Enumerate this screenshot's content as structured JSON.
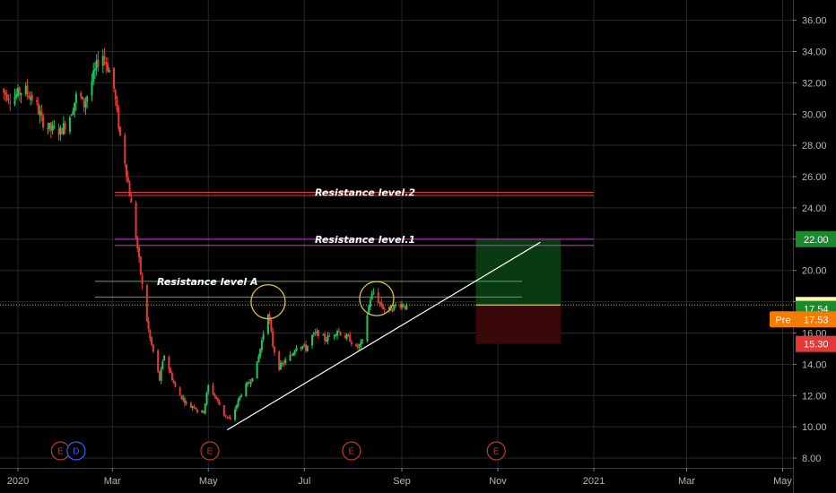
{
  "colors": {
    "background": "#000000",
    "grid": "#26282d",
    "up": "#26a69a",
    "up_bright": "#22c55e",
    "down": "#e53935",
    "resistance_2": "#e53935",
    "resistance_1": "#c040c0",
    "resistance_a": "#4caf50",
    "trendline": "#ffffff",
    "circle": "#e0c040",
    "last_price_line": "#d4b000",
    "profit_zone": "#0a3a12",
    "loss_zone": "#3a0808",
    "earnings": "#c0392b",
    "dividend": "#2962ff"
  },
  "chart_data": {
    "type": "candlestick",
    "x_axis": {
      "ticks": [
        {
          "label": "2020",
          "date": "2020-01-01"
        },
        {
          "label": "Mar",
          "date": "2020-03-01"
        },
        {
          "label": "May",
          "date": "2020-05-01"
        },
        {
          "label": "Jul",
          "date": "2020-07-01"
        },
        {
          "label": "Sep",
          "date": "2020-09-01"
        },
        {
          "label": "Nov",
          "date": "2020-11-01"
        },
        {
          "label": "2021",
          "date": "2021-01-01"
        },
        {
          "label": "Mar",
          "date": "2021-03-01"
        },
        {
          "label": "May",
          "date": "2021-05-01"
        }
      ]
    },
    "y_axis": {
      "ylim": [
        7.5,
        37.0
      ],
      "ticks": [
        "36.00",
        "34.00",
        "32.00",
        "30.00",
        "28.00",
        "26.00",
        "24.00",
        "22.00",
        "20.00",
        "18.00",
        "16.00",
        "14.00",
        "12.00",
        "10.00",
        "8.00"
      ]
    },
    "price_path": [
      [
        "2019-12-20",
        31.6
      ],
      [
        "2019-12-28",
        31.0
      ],
      [
        "2020-01-05",
        31.6
      ],
      [
        "2020-01-12",
        30.8
      ],
      [
        "2020-01-16",
        29.6
      ],
      [
        "2020-01-22",
        29.0
      ],
      [
        "2020-01-28",
        28.9
      ],
      [
        "2020-02-02",
        29.6
      ],
      [
        "2020-02-08",
        31.4
      ],
      [
        "2020-02-12",
        30.6
      ],
      [
        "2020-02-18",
        32.4
      ],
      [
        "2020-02-21",
        33.4
      ],
      [
        "2020-02-24",
        33.8
      ],
      [
        "2020-02-28",
        32.8
      ],
      [
        "2020-03-02",
        31.6
      ],
      [
        "2020-03-04",
        30.0
      ],
      [
        "2020-03-06",
        28.6
      ],
      [
        "2020-03-09",
        27.0
      ],
      [
        "2020-03-11",
        25.6
      ],
      [
        "2020-03-13",
        24.2
      ],
      [
        "2020-03-16",
        22.2
      ],
      [
        "2020-03-18",
        20.6
      ],
      [
        "2020-03-20",
        19.0
      ],
      [
        "2020-03-23",
        16.8
      ],
      [
        "2020-03-25",
        15.6
      ],
      [
        "2020-03-28",
        14.4
      ],
      [
        "2020-03-31",
        13.0
      ],
      [
        "2020-04-03",
        14.6
      ],
      [
        "2020-04-07",
        13.4
      ],
      [
        "2020-04-11",
        12.2
      ],
      [
        "2020-04-15",
        11.8
      ],
      [
        "2020-04-19",
        11.2
      ],
      [
        "2020-04-22",
        11.4
      ],
      [
        "2020-04-25",
        10.8
      ],
      [
        "2020-04-28",
        11.0
      ],
      [
        "2020-05-01",
        12.6
      ],
      [
        "2020-05-05",
        12.0
      ],
      [
        "2020-05-08",
        11.4
      ],
      [
        "2020-05-11",
        10.8
      ],
      [
        "2020-05-15",
        10.4
      ],
      [
        "2020-05-19",
        11.4
      ],
      [
        "2020-05-23",
        12.4
      ],
      [
        "2020-05-27",
        12.8
      ],
      [
        "2020-06-01",
        14.0
      ],
      [
        "2020-06-05",
        16.0
      ],
      [
        "2020-06-08",
        17.4
      ],
      [
        "2020-06-11",
        15.2
      ],
      [
        "2020-06-15",
        13.8
      ],
      [
        "2020-06-19",
        14.2
      ],
      [
        "2020-06-23",
        14.6
      ],
      [
        "2020-06-27",
        15.4
      ],
      [
        "2020-07-02",
        15.0
      ],
      [
        "2020-07-06",
        15.8
      ],
      [
        "2020-07-10",
        16.0
      ],
      [
        "2020-07-14",
        15.6
      ],
      [
        "2020-07-18",
        15.8
      ],
      [
        "2020-07-22",
        16.2
      ],
      [
        "2020-07-26",
        15.8
      ],
      [
        "2020-07-30",
        15.6
      ],
      [
        "2020-08-03",
        15.0
      ],
      [
        "2020-08-07",
        15.4
      ],
      [
        "2020-08-10",
        17.2
      ],
      [
        "2020-08-12",
        18.2
      ],
      [
        "2020-08-14",
        18.6
      ],
      [
        "2020-08-18",
        17.9
      ],
      [
        "2020-08-22",
        17.4
      ],
      [
        "2020-08-26",
        17.6
      ],
      [
        "2020-08-30",
        17.9
      ],
      [
        "2020-09-02",
        17.8
      ],
      [
        "2020-09-04",
        17.6
      ]
    ],
    "horizontal_levels": [
      {
        "label": "Resistance level.2",
        "values": [
          25.0,
          24.8
        ]
      },
      {
        "label": "Resistance level.1",
        "values": [
          22.0,
          21.6
        ]
      },
      {
        "label": "Resistance level A",
        "values": [
          19.3,
          18.3
        ]
      }
    ],
    "trendline": {
      "from": [
        "2020-05-13",
        9.8
      ],
      "to": [
        "2020-11-28",
        21.8
      ]
    },
    "circles": [
      {
        "date": "2020-06-08",
        "value": 18.0
      },
      {
        "date": "2020-08-16",
        "value": 18.2
      }
    ],
    "position_box": {
      "from": "2020-10-18",
      "to": "2020-12-11",
      "target": 22.0,
      "entry": 17.79,
      "stop": 15.3
    },
    "last_price": 17.79,
    "price_tags": [
      {
        "value": 22.0,
        "label": "22.00",
        "bg": "#1b8a2e",
        "fg": "#ffffff"
      },
      {
        "value": 17.79,
        "label": "17.79",
        "bg": "#fff9a8",
        "fg": "#000000"
      },
      {
        "value": 17.54,
        "label": "17.54",
        "bg": "#1b8a2e",
        "fg": "#ffffff"
      },
      {
        "value": 16.87,
        "label": "17.53",
        "bg": "#f57c00",
        "fg": "#ffffff",
        "prefix": "Pre"
      },
      {
        "value": 15.3,
        "label": "15.30",
        "bg": "#e53935",
        "fg": "#ffffff"
      }
    ],
    "events": [
      {
        "date": "2020-01-28",
        "label": "E",
        "kind": "earnings"
      },
      {
        "date": "2020-02-07",
        "label": "D",
        "kind": "dividend"
      },
      {
        "date": "2020-05-02",
        "label": "E",
        "kind": "earnings"
      },
      {
        "date": "2020-07-31",
        "label": "E",
        "kind": "earnings"
      },
      {
        "date": "2020-10-31",
        "label": "E",
        "kind": "earnings"
      }
    ]
  }
}
